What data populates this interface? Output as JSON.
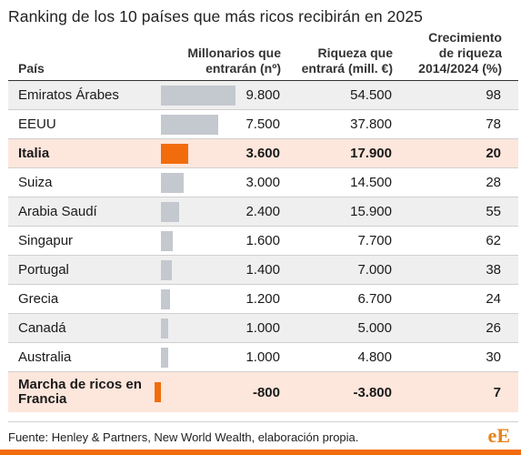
{
  "chart_data": {
    "type": "table",
    "title": "Ranking de los 10 países que más ricos recibirán en 2025",
    "columns": [
      "País",
      "Millonarios que entrarán (nº)",
      "Riqueza que entrará (mill. €)",
      "Crecimiento de riqueza 2014/2024 (%)"
    ],
    "bar_column": "Millonarios que entrarán (nº)",
    "highlight_color": "#f26c0d",
    "bar_color": "#c4c8cf",
    "rows": [
      {
        "pais": "Emiratos Árabes",
        "millonarios": 9800,
        "millonarios_label": "9.800",
        "riqueza": "54.500",
        "crecimiento": "98",
        "highlight": false
      },
      {
        "pais": "EEUU",
        "millonarios": 7500,
        "millonarios_label": "7.500",
        "riqueza": "37.800",
        "crecimiento": "78",
        "highlight": false
      },
      {
        "pais": "Italia",
        "millonarios": 3600,
        "millonarios_label": "3.600",
        "riqueza": "17.900",
        "crecimiento": "20",
        "highlight": true
      },
      {
        "pais": "Suiza",
        "millonarios": 3000,
        "millonarios_label": "3.000",
        "riqueza": "14.500",
        "crecimiento": "28",
        "highlight": false
      },
      {
        "pais": "Arabia Saudí",
        "millonarios": 2400,
        "millonarios_label": "2.400",
        "riqueza": "15.900",
        "crecimiento": "55",
        "highlight": false
      },
      {
        "pais": "Singapur",
        "millonarios": 1600,
        "millonarios_label": "1.600",
        "riqueza": "7.700",
        "crecimiento": "62",
        "highlight": false
      },
      {
        "pais": "Portugal",
        "millonarios": 1400,
        "millonarios_label": "1.400",
        "riqueza": "7.000",
        "crecimiento": "38",
        "highlight": false
      },
      {
        "pais": "Grecia",
        "millonarios": 1200,
        "millonarios_label": "1.200",
        "riqueza": "6.700",
        "crecimiento": "24",
        "highlight": false
      },
      {
        "pais": "Canadá",
        "millonarios": 1000,
        "millonarios_label": "1.000",
        "riqueza": "5.000",
        "crecimiento": "26",
        "highlight": false
      },
      {
        "pais": "Australia",
        "millonarios": 1000,
        "millonarios_label": "1.000",
        "riqueza": "4.800",
        "crecimiento": "30",
        "highlight": false
      },
      {
        "pais": "Marcha de ricos en Francia",
        "millonarios": -800,
        "millonarios_label": "-800",
        "riqueza": "-3.800",
        "crecimiento": "7",
        "highlight": true
      }
    ]
  },
  "footer": {
    "source": "Fuente: Henley & Partners, New World Wealth, elaboración propia.",
    "logo": "eE"
  }
}
